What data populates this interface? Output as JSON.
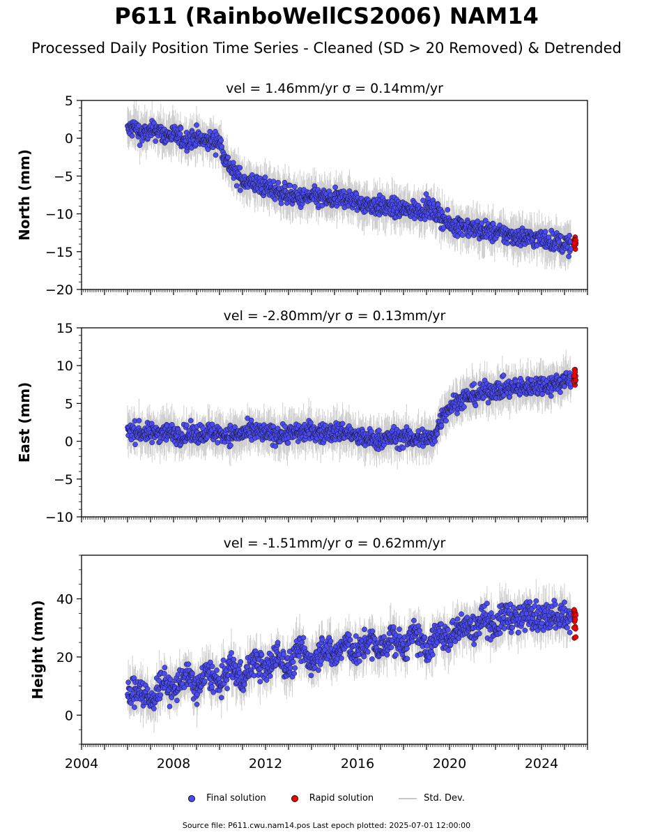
{
  "title": "P611 (RainboWellCS2006) NAM14",
  "subtitle": "Processed Daily Position Time Series - Cleaned (SD > 20 Removed) & Detrended",
  "footer": "Source file: P611.cwu.nam14.pos  Last epoch plotted: 2025-07-01 12:00:00",
  "legend": {
    "final": "Final solution",
    "rapid": "Rapid solution",
    "std": "Std. Dev."
  },
  "colors": {
    "final": "#4b4bf5",
    "rapid": "#ee0000",
    "std": "#c8c8c8",
    "marker_edge": "#111111"
  },
  "chart_data": [
    {
      "type": "scatter",
      "title": "vel = 1.46mm/yr   σ = 0.14mm/yr",
      "ylabel": "North (mm)",
      "ylim": [
        -20,
        5
      ],
      "yticks": [
        5,
        0,
        -5,
        -10,
        -15,
        -20
      ],
      "xlim": [
        2004,
        2026
      ],
      "xticks": [
        "2004",
        "2008",
        "2012",
        "2016",
        "2020",
        "2024"
      ],
      "series": [
        {
          "name": "Final solution",
          "x": [
            2006.0,
            2006.3,
            2006.6,
            2007.0,
            2007.3,
            2007.6,
            2008.0,
            2008.3,
            2008.6,
            2009.0,
            2009.3,
            2009.6,
            2010.0,
            2010.3,
            2010.6,
            2011.0,
            2011.5,
            2012.0,
            2012.5,
            2013.0,
            2013.5,
            2014.0,
            2014.5,
            2015.0,
            2015.5,
            2016.0,
            2016.5,
            2017.0,
            2017.5,
            2018.0,
            2018.5,
            2019.0,
            2019.4,
            2019.7,
            2020.0,
            2020.5,
            2021.0,
            2021.5,
            2022.0,
            2022.5,
            2023.0,
            2023.5,
            2024.0,
            2024.5,
            2025.0,
            2025.3
          ],
          "values": [
            1.0,
            1.5,
            0.5,
            0.8,
            1.2,
            0.3,
            0.5,
            0.0,
            -0.3,
            0.2,
            -0.5,
            -0.3,
            -0.5,
            -3.0,
            -4.5,
            -5.5,
            -6.0,
            -6.5,
            -7.0,
            -7.5,
            -8.0,
            -7.8,
            -8.0,
            -8.2,
            -7.8,
            -8.5,
            -8.8,
            -9.0,
            -9.2,
            -9.5,
            -9.5,
            -9.2,
            -9.8,
            -10.5,
            -11.5,
            -11.5,
            -12.0,
            -12.2,
            -12.5,
            -12.8,
            -13.0,
            -13.2,
            -13.3,
            -13.6,
            -14.0,
            -14.2
          ]
        },
        {
          "name": "Rapid solution",
          "x": [
            2025.35,
            2025.4,
            2025.45,
            2025.5
          ],
          "values": [
            -13.5,
            -14.0,
            -14.4,
            -13.8
          ]
        }
      ]
    },
    {
      "type": "scatter",
      "title": "vel = -2.80mm/yr   σ = 0.13mm/yr",
      "ylabel": "East (mm)",
      "ylim": [
        -10,
        15
      ],
      "yticks": [
        15,
        10,
        5,
        0,
        -5,
        -10
      ],
      "xlim": [
        2004,
        2026
      ],
      "xticks": [
        "2004",
        "2008",
        "2012",
        "2016",
        "2020",
        "2024"
      ],
      "series": [
        {
          "name": "Final solution",
          "x": [
            2006.0,
            2006.5,
            2007.0,
            2007.5,
            2008.0,
            2008.5,
            2009.0,
            2009.5,
            2010.0,
            2010.5,
            2011.0,
            2011.5,
            2012.0,
            2012.5,
            2013.0,
            2013.5,
            2014.0,
            2014.5,
            2015.0,
            2015.5,
            2016.0,
            2016.5,
            2017.0,
            2017.5,
            2018.0,
            2018.5,
            2019.0,
            2019.3,
            2019.5,
            2019.8,
            2020.0,
            2020.5,
            2021.0,
            2021.5,
            2022.0,
            2022.5,
            2023.0,
            2023.5,
            2024.0,
            2024.5,
            2025.0,
            2025.3
          ],
          "values": [
            1.5,
            1.2,
            1.0,
            1.3,
            1.0,
            0.8,
            1.0,
            1.2,
            1.0,
            0.8,
            1.0,
            1.3,
            1.0,
            0.9,
            1.0,
            1.2,
            1.3,
            1.0,
            1.2,
            1.3,
            0.5,
            0.3,
            0.2,
            0.5,
            0.5,
            0.3,
            0.5,
            0.2,
            2.0,
            4.0,
            4.5,
            5.5,
            6.0,
            6.5,
            6.8,
            7.0,
            7.0,
            7.2,
            7.5,
            7.5,
            8.0,
            8.2
          ]
        },
        {
          "name": "Rapid solution",
          "x": [
            2025.35,
            2025.4,
            2025.45,
            2025.5
          ],
          "values": [
            7.8,
            8.6,
            9.2,
            8.2
          ]
        }
      ]
    },
    {
      "type": "scatter",
      "title": "vel = -1.51mm/yr   σ = 0.62mm/yr",
      "ylabel": "Height (mm)",
      "ylim": [
        -10,
        55
      ],
      "yticks": [
        40,
        20,
        0
      ],
      "xlim": [
        2004,
        2026
      ],
      "xticks": [
        "2004",
        "2008",
        "2012",
        "2016",
        "2020",
        "2024"
      ],
      "series": [
        {
          "name": "Final solution",
          "x": [
            2006.0,
            2006.5,
            2007.0,
            2007.5,
            2008.0,
            2008.5,
            2009.0,
            2009.5,
            2010.0,
            2010.5,
            2011.0,
            2011.5,
            2012.0,
            2012.5,
            2013.0,
            2013.5,
            2014.0,
            2014.5,
            2015.0,
            2015.5,
            2016.0,
            2016.5,
            2017.0,
            2017.5,
            2018.0,
            2018.5,
            2019.0,
            2019.5,
            2020.0,
            2020.5,
            2021.0,
            2021.5,
            2022.0,
            2022.5,
            2023.0,
            2023.5,
            2024.0,
            2024.5,
            2025.0,
            2025.3
          ],
          "values": [
            6,
            10,
            4,
            12,
            8,
            14,
            9,
            15,
            10,
            17,
            12,
            19,
            15,
            21,
            16,
            23,
            18,
            24,
            20,
            25,
            21,
            26,
            22,
            27,
            23,
            28,
            22,
            28,
            26,
            32,
            29,
            34,
            30,
            35,
            32,
            36,
            33,
            35,
            34,
            33
          ]
        },
        {
          "name": "Rapid solution",
          "x": [
            2025.35,
            2025.4,
            2025.45,
            2025.5
          ],
          "values": [
            31,
            34,
            29,
            36
          ]
        }
      ]
    }
  ]
}
